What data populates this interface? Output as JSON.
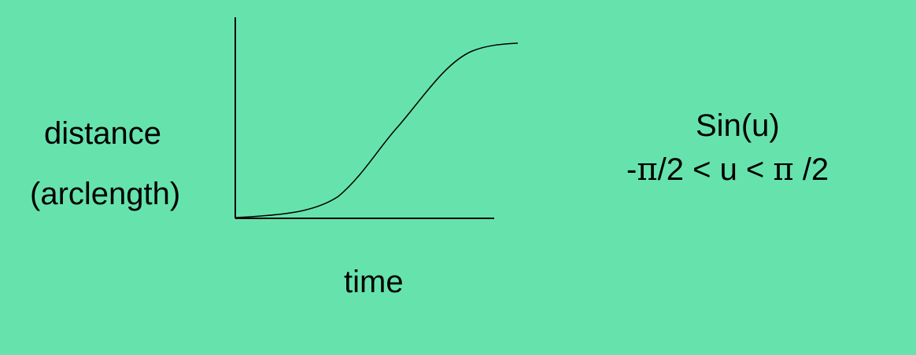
{
  "diagram": {
    "y_label_line1": "distance",
    "y_label_line2": "(arclength)",
    "x_label": "time",
    "curve_name": "Sin(u)",
    "domain": {
      "prefix": "-",
      "pi1": "π",
      "mid": "/2 < u < ",
      "pi2": "π",
      "suffix": " /2"
    }
  }
}
